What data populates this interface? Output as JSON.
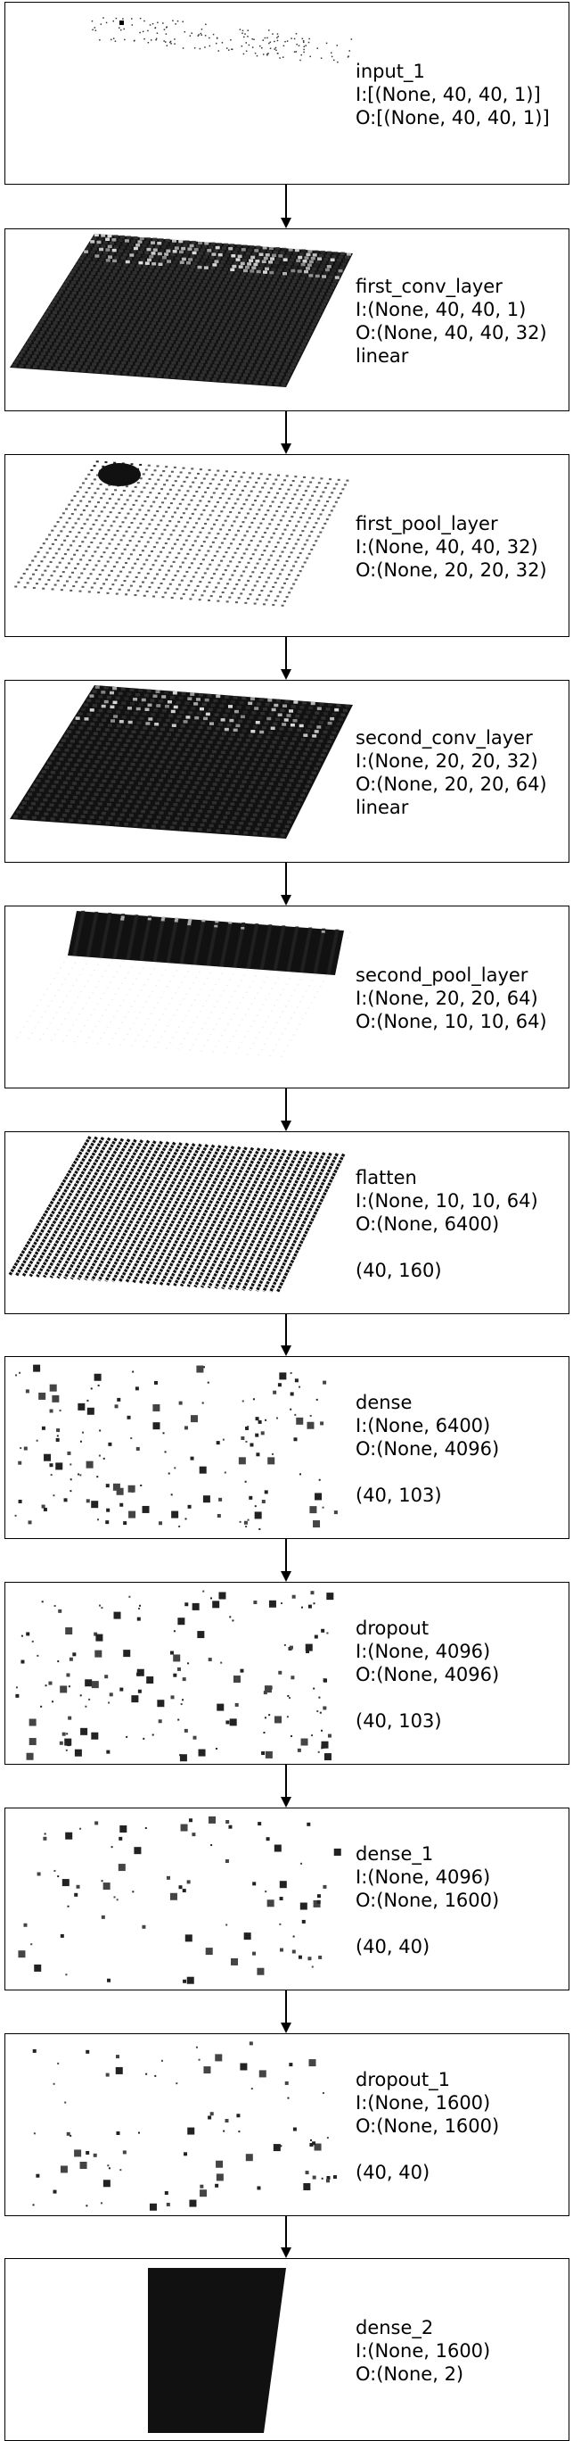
{
  "layers": [
    {
      "name": "input_1",
      "input": "I:[(None, 40, 40, 1)]",
      "output": "O:[(None, 40, 40, 1)]",
      "activation": "",
      "shape": "",
      "viz": "sparse-pixels-plane"
    },
    {
      "name": "first_conv_layer",
      "input": "I:(None, 40, 40, 1)",
      "output": "O:(None, 40, 40, 32)",
      "activation": "linear",
      "shape": "",
      "viz": "dense-dot-grid-plane"
    },
    {
      "name": "first_pool_layer",
      "input": "I:(None, 40, 40, 32)",
      "output": "O:(None, 20, 20, 32)",
      "activation": "",
      "shape": "",
      "viz": "dot-grid-plane"
    },
    {
      "name": "second_conv_layer",
      "input": "I:(None, 20, 20, 32)",
      "output": "O:(None, 20, 20, 64)",
      "activation": "linear",
      "shape": "",
      "viz": "dense-dot-grid-plane"
    },
    {
      "name": "second_pool_layer",
      "input": "I:(None, 20, 20, 64)",
      "output": "O:(None, 10, 10, 64)",
      "activation": "",
      "shape": "",
      "viz": "faint-dot-grid-plane"
    },
    {
      "name": "flatten",
      "input": "I:(None, 10, 10, 64)",
      "output": "O:(None, 6400)",
      "activation": "",
      "shape": "(40, 160)",
      "viz": "striped-plane"
    },
    {
      "name": "dense",
      "input": "I:(None, 6400)",
      "output": "O:(None, 4096)",
      "activation": "",
      "shape": "(40, 103)",
      "viz": "scattered-squares"
    },
    {
      "name": "dropout",
      "input": "I:(None, 4096)",
      "output": "O:(None, 4096)",
      "activation": "",
      "shape": "(40, 103)",
      "viz": "scattered-squares"
    },
    {
      "name": "dense_1",
      "input": "I:(None, 4096)",
      "output": "O:(None, 1600)",
      "activation": "",
      "shape": "(40, 40)",
      "viz": "scattered-squares"
    },
    {
      "name": "dropout_1",
      "input": "I:(None, 1600)",
      "output": "O:(None, 1600)",
      "activation": "",
      "shape": "(40, 40)",
      "viz": "scattered-squares"
    },
    {
      "name": "dense_2",
      "input": "I:(None, 1600)",
      "output": "O:(None, 2)",
      "activation": "",
      "shape": "",
      "viz": "solid-plane"
    }
  ]
}
